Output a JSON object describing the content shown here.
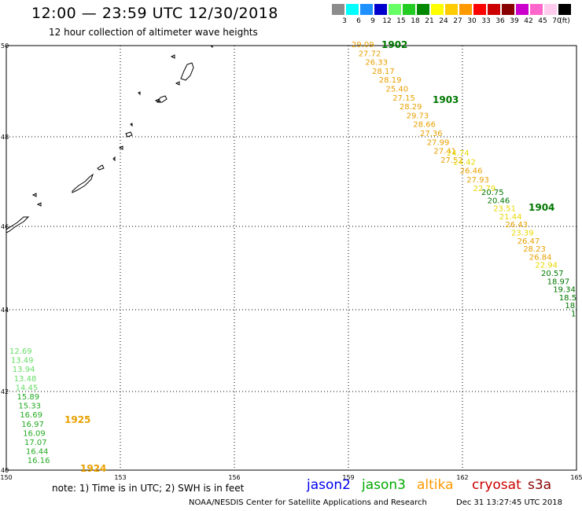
{
  "header": {
    "title": "12:00 — 23:59 UTC 12/30/2018",
    "subtitle": "12 hour collection of altimeter wave heights"
  },
  "legend": {
    "unit": "(ft)",
    "entries": [
      {
        "label": "3",
        "color": "#8c8c8c"
      },
      {
        "label": "6",
        "color": "#00ffff"
      },
      {
        "label": "9",
        "color": "#1e90ff"
      },
      {
        "label": "12",
        "color": "#0000cd"
      },
      {
        "label": "15",
        "color": "#66ff66"
      },
      {
        "label": "18",
        "color": "#22cc22"
      },
      {
        "label": "21",
        "color": "#008800"
      },
      {
        "label": "24",
        "color": "#ffff00"
      },
      {
        "label": "27",
        "color": "#ffcc00"
      },
      {
        "label": "30",
        "color": "#ff9900"
      },
      {
        "label": "33",
        "color": "#ff0000"
      },
      {
        "label": "36",
        "color": "#cc0000"
      },
      {
        "label": "39",
        "color": "#880000"
      },
      {
        "label": "42",
        "color": "#cc00cc"
      },
      {
        "label": "45",
        "color": "#ff66cc"
      },
      {
        "label": "70",
        "color": "#ffccee"
      },
      {
        "label": "",
        "color": "#000000"
      }
    ]
  },
  "axes": {
    "lon_ticks": [
      "150",
      "153",
      "156",
      "159",
      "162",
      "165"
    ],
    "lat_ticks": [
      "50",
      "48",
      "46",
      "44",
      "42",
      "40"
    ]
  },
  "tracks": [
    {
      "color": "#e8a000",
      "label": "1902",
      "label_color": "#007700",
      "values": [
        "29.09",
        "27.72",
        "26.33",
        "28.17",
        "28.19",
        "25.40",
        "27.15",
        "28.29",
        "29.73",
        "28.66",
        "27.36",
        "27.99",
        "27.41",
        "27.52"
      ]
    },
    {
      "color": "#e8d800",
      "label": "1903",
      "label_color": "#007700",
      "values": [
        "24.74",
        "24.42",
        "26.46",
        "27.93",
        "22.79"
      ]
    },
    {
      "color": "#007700",
      "label": "1904",
      "label_color": "#007700",
      "values": [
        "20.75",
        "20.46",
        "23.51",
        "21.44",
        "26.43",
        "23.39",
        "26.47",
        "28.23",
        "26.84",
        "22.94",
        "20.57",
        "18.97",
        "19.34",
        "18.5",
        "18.",
        "1"
      ]
    },
    {
      "color": "#33cc33",
      "label": "1925",
      "label_color": "#e8a000",
      "values": [
        "12.69",
        "13.49",
        "13.94",
        "13.48",
        "14.45",
        "15.89",
        "15.33",
        "16.69",
        "16.97",
        "16.09",
        "17.07",
        "16.44",
        "16.16"
      ]
    },
    {
      "color": "#e8a000",
      "label": "1924",
      "label_color": "#e8a000",
      "values": []
    }
  ],
  "footer": {
    "note": "note:  1) Time is in UTC;  2) SWH is in feet",
    "satellites": [
      {
        "name": "jason2",
        "color": "#0000ee"
      },
      {
        "name": "jason3",
        "color": "#00aa00"
      },
      {
        "name": "altika",
        "color": "#ff9900"
      },
      {
        "name": "cryosat",
        "color": "#cc0000"
      },
      {
        "name": "s3a",
        "color": "#880000"
      }
    ],
    "credit": "NOAA/NESDIS Center for Satellite Applications and Research",
    "timestamp": "Dec 31 13:27:45 UTC 2018"
  }
}
